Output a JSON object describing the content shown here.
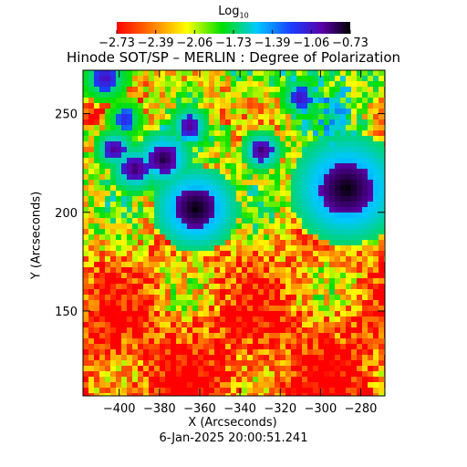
{
  "title": "Hinode SOT/SP – MERLIN : Degree of Polarization",
  "colorbar": {
    "label_base": "Log",
    "label_sub": "10",
    "ticks": [
      "−2.73",
      "−2.39",
      "−2.06",
      "−1.73",
      "−1.39",
      "−1.06",
      "−0.73"
    ],
    "range": [
      -2.73,
      -0.73
    ]
  },
  "footer": "6-Jan-2025 20:00:51.241",
  "chart_data": {
    "type": "heatmap",
    "title": "Hinode SOT/SP – MERLIN : Degree of Polarization",
    "xlabel": "X (Arcseconds)",
    "ylabel": "Y (Arcseconds)",
    "xlim": [
      -418,
      -268
    ],
    "ylim": [
      107,
      272
    ],
    "xticks": [
      -400,
      -380,
      -360,
      -340,
      -320,
      -300,
      -280
    ],
    "xtick_labels": [
      "−400",
      "−380",
      "−360",
      "−340",
      "−320",
      "−300",
      "−280"
    ],
    "yticks": [
      150,
      200,
      250
    ],
    "ytick_labels": [
      "150",
      "200",
      "250"
    ],
    "colormap": "rainbow",
    "value_range": [
      -2.73,
      -0.73
    ],
    "features": [
      {
        "x": -362,
        "y": 202,
        "r": 10,
        "level": -0.73
      },
      {
        "x": -378,
        "y": 227,
        "r": 7,
        "level": -0.8
      },
      {
        "x": -392,
        "y": 222,
        "r": 6,
        "level": -0.85
      },
      {
        "x": -402,
        "y": 232,
        "r": 5,
        "level": -0.9
      },
      {
        "x": -287,
        "y": 212,
        "r": 13,
        "level": -0.73
      },
      {
        "x": -329,
        "y": 231,
        "r": 5,
        "level": -0.85
      },
      {
        "x": -365,
        "y": 244,
        "r": 5,
        "level": -0.9
      },
      {
        "x": -310,
        "y": 258,
        "r": 5,
        "level": -1.0
      },
      {
        "x": -407,
        "y": 268,
        "r": 6,
        "level": -1.0
      },
      {
        "x": -397,
        "y": 247,
        "r": 5,
        "level": -1.1
      }
    ]
  }
}
